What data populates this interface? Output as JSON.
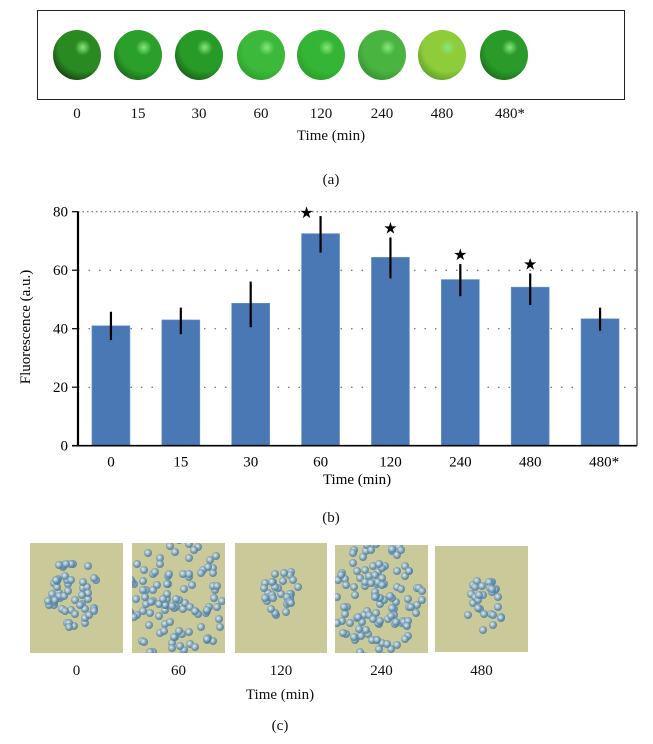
{
  "panel_a": {
    "label": "(a)",
    "xlabel": "Time (min)",
    "items": [
      {
        "time": "0",
        "color_center": "#2a8a22",
        "color_edge": "#050805"
      },
      {
        "time": "15",
        "color_center": "#2aa02a",
        "color_edge": "#0c3a0c"
      },
      {
        "time": "30",
        "color_center": "#279a27",
        "color_edge": "#0a300a"
      },
      {
        "time": "60",
        "color_center": "#3cb83a",
        "color_edge": "#1f8a1f"
      },
      {
        "time": "120",
        "color_center": "#35b535",
        "color_edge": "#1e8a1e"
      },
      {
        "time": "240",
        "color_center": "#4ab440",
        "color_edge": "#1f7a1f"
      },
      {
        "time": "480",
        "color_center": "#8fcc3a",
        "color_edge": "#2e7a1e"
      },
      {
        "time": "480*",
        "color_center": "#2a9a2a",
        "color_edge": "#0e4a0e"
      }
    ]
  },
  "panel_b": {
    "label": "(b)"
  },
  "chart_data": {
    "type": "bar",
    "title": "",
    "xlabel": "Time (min)",
    "ylabel": "Fluorescence (a.u.)",
    "ylim": [
      0,
      80
    ],
    "yticks": [
      "0",
      "20",
      "40",
      "60",
      "80"
    ],
    "grid": "horizontal dotted",
    "bar_color": "#4a78b4",
    "categories": [
      "0",
      "15",
      "30",
      "60",
      "120",
      "240",
      "480",
      "480*"
    ],
    "values": [
      41.0,
      43.0,
      48.7,
      72.5,
      64.4,
      56.8,
      54.2,
      43.4
    ],
    "error_upper": [
      45.8,
      47.2,
      56.1,
      78.5,
      71.2,
      62.1,
      58.9,
      47.2
    ],
    "error_lower": [
      36.1,
      38.1,
      40.5,
      66.0,
      57.2,
      51.1,
      48.1,
      39.3
    ],
    "significant": [
      false,
      false,
      false,
      true,
      true,
      true,
      true,
      false
    ],
    "significance_marker": "★"
  },
  "panel_c": {
    "label": "(c)",
    "xlabel": "Time (min)",
    "items": [
      {
        "time": "0"
      },
      {
        "time": "60"
      },
      {
        "time": "120"
      },
      {
        "time": "240"
      },
      {
        "time": "480"
      }
    ],
    "bg_color": "#c9c99a",
    "cell_color": "#5a86a8"
  }
}
